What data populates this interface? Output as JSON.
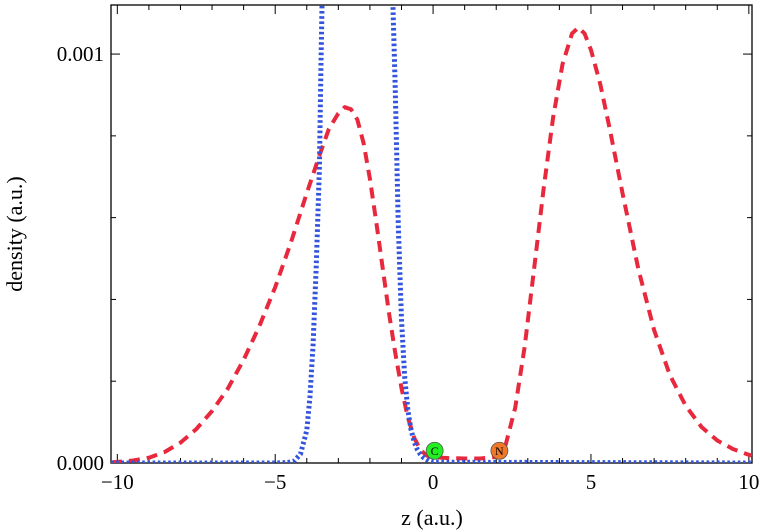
{
  "chart_data": {
    "type": "line",
    "xlabel": "z (a.u.)",
    "ylabel": "density (a.u.)",
    "xlim": [
      -10.2,
      10.1
    ],
    "ylim": [
      0,
      0.00112
    ],
    "x_ticks": [
      -10,
      -5,
      0,
      5,
      10
    ],
    "x_tick_labels": [
      "−10",
      "−5",
      "0",
      "5",
      "10"
    ],
    "y_ticks": [
      0,
      0.001
    ],
    "y_tick_labels": [
      "0.000",
      "0.001"
    ],
    "grid": false,
    "legend": "none",
    "series": [
      {
        "style": "dashed",
        "color": "#e8283c",
        "x": [
          -10.2,
          -9.5,
          -9,
          -8.5,
          -8,
          -7.5,
          -7,
          -6.5,
          -6,
          -5.5,
          -5,
          -4.5,
          -4,
          -3.6,
          -3.3,
          -3,
          -2.8,
          -2.6,
          -2.4,
          -2.2,
          -2,
          -1.8,
          -1.6,
          -1.4,
          -1.2,
          -1,
          -0.8,
          -0.6,
          -0.4,
          -0.2,
          0,
          0.5,
          1,
          1.5,
          2,
          2.3,
          2.6,
          2.9,
          3.2,
          3.5,
          3.8,
          4.1,
          4.4,
          4.6,
          4.8,
          5.0,
          5.3,
          5.6,
          6,
          6.5,
          7,
          7.5,
          8,
          8.5,
          9,
          9.5,
          10,
          10.1
        ],
        "y": [
          1.5e-06,
          6e-06,
          1.3e-05,
          2.7e-05,
          5e-05,
          8.3e-05,
          0.000127,
          0.000182,
          0.000252,
          0.000335,
          0.00043,
          0.00054,
          0.00066,
          0.000752,
          0.000817,
          0.000855,
          0.00087,
          0.000865,
          0.00084,
          0.000782,
          0.000695,
          0.00059,
          0.000478,
          0.000368,
          0.00027,
          0.000183,
          0.000112,
          6.2e-05,
          3.2e-05,
          1.8e-05,
          1.4e-05,
          1.2e-05,
          1.1e-05,
          1.1e-05,
          1.5e-05,
          4.5e-05,
          0.000135,
          0.000285,
          0.000475,
          0.00067,
          0.000845,
          0.000975,
          0.00105,
          0.001065,
          0.00105,
          0.00101,
          0.000925,
          0.000815,
          0.00066,
          0.000475,
          0.000325,
          0.000215,
          0.00014,
          8.8e-05,
          5.5e-05,
          3.4e-05,
          2e-05,
          1.8e-05
        ]
      },
      {
        "style": "dotted",
        "color": "#3355dd",
        "x": [
          -10.2,
          -5,
          -4.6,
          -4.4,
          -4.2,
          -4.0,
          -3.9,
          -3.8,
          -3.7,
          -3.6,
          -3.55,
          -3.5,
          -1.3,
          -1.2,
          -1.1,
          -1.0,
          -0.9,
          -0.8,
          -0.7,
          -0.6,
          -0.5,
          -0.4,
          -0.3,
          -0.2,
          -0.1,
          0,
          10.1
        ],
        "y": [
          0,
          0,
          1e-06,
          5e-06,
          2.2e-05,
          8e-05,
          0.00016,
          0.00029,
          0.00048,
          0.00072,
          0.00098,
          0.0012,
          0.0012,
          0.00092,
          0.00058,
          0.00035,
          0.00021,
          0.00013,
          8.2e-05,
          5.2e-05,
          3.3e-05,
          2.1e-05,
          1.3e-05,
          8e-06,
          4e-06,
          2e-06,
          0
        ]
      }
    ],
    "annotations": [
      {
        "label": "C",
        "x": 0.05,
        "y": 2.5e-05,
        "color": "#22ee22"
      },
      {
        "label": "N",
        "x": 2.1,
        "y": 2.5e-05,
        "color": "#f07828"
      }
    ]
  }
}
